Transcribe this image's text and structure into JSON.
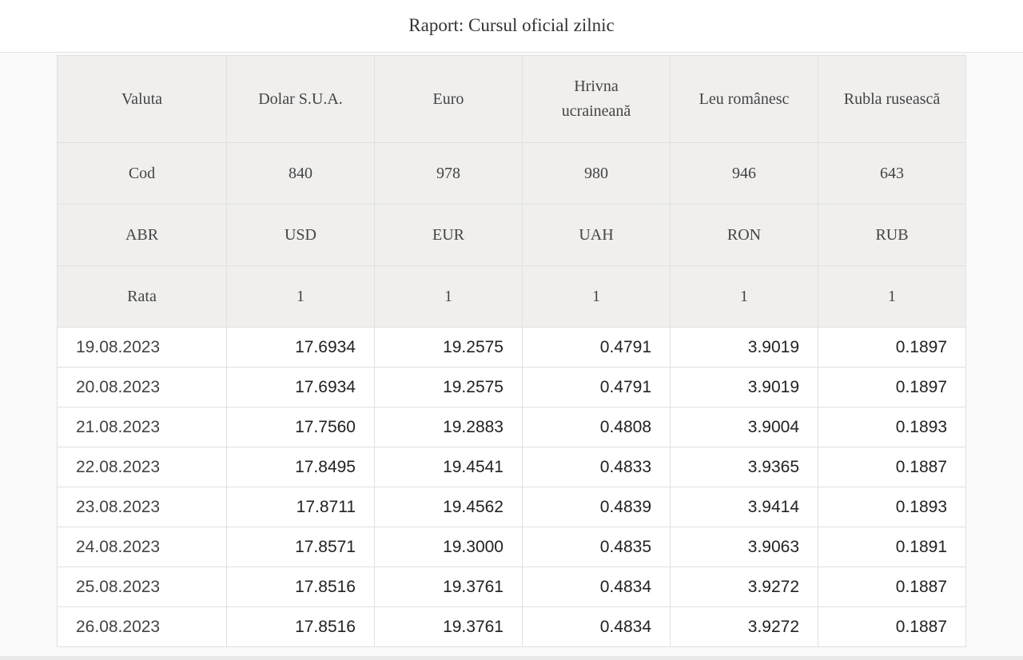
{
  "title": "Raport: Cursul oficial zilnic",
  "table": {
    "header_rows": [
      [
        "Valuta",
        "Dolar S.U.A.",
        "Euro",
        "Hrivna ucraineană",
        "Leu românesc",
        "Rubla rusească"
      ],
      [
        "Cod",
        "840",
        "978",
        "980",
        "946",
        "643"
      ],
      [
        "ABR",
        "USD",
        "EUR",
        "UAH",
        "RON",
        "RUB"
      ],
      [
        "Rata",
        "1",
        "1",
        "1",
        "1",
        "1"
      ]
    ],
    "rows": [
      [
        "19.08.2023",
        "17.6934",
        "19.2575",
        "0.4791",
        "3.9019",
        "0.1897"
      ],
      [
        "20.08.2023",
        "17.6934",
        "19.2575",
        "0.4791",
        "3.9019",
        "0.1897"
      ],
      [
        "21.08.2023",
        "17.7560",
        "19.2883",
        "0.4808",
        "3.9004",
        "0.1893"
      ],
      [
        "22.08.2023",
        "17.8495",
        "19.4541",
        "0.4833",
        "3.9365",
        "0.1887"
      ],
      [
        "23.08.2023",
        "17.8711",
        "19.4562",
        "0.4839",
        "3.9414",
        "0.1893"
      ],
      [
        "24.08.2023",
        "17.8571",
        "19.3000",
        "0.4835",
        "3.9063",
        "0.1891"
      ],
      [
        "25.08.2023",
        "17.8516",
        "19.3761",
        "0.4834",
        "3.9272",
        "0.1887"
      ],
      [
        "26.08.2023",
        "17.8516",
        "19.3761",
        "0.4834",
        "3.9272",
        "0.1887"
      ]
    ]
  }
}
